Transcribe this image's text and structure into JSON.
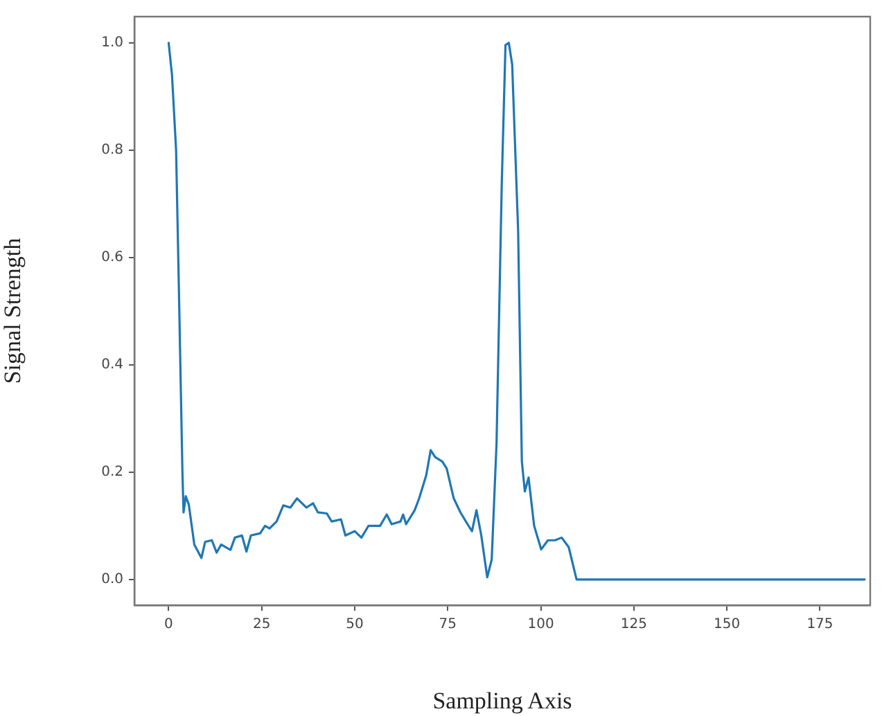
{
  "chart_data": {
    "type": "line",
    "xlabel": "Sampling Axis",
    "ylabel": "Signal Strength",
    "xlim": [
      -9.2,
      188.5
    ],
    "ylim": [
      -0.048,
      1.049
    ],
    "xticks": [
      0,
      25,
      50,
      75,
      100,
      125,
      150,
      175
    ],
    "yticks": [
      {
        "value": 0,
        "label": "0.0"
      },
      0.2,
      0.4,
      0.6,
      0.8,
      {
        "value": 1,
        "label": "1.0"
      }
    ],
    "grid": false,
    "legend": false,
    "marker": "none",
    "line_style": "solid",
    "series": [
      {
        "color": "#1f77b4",
        "x": [
          0,
          0.9,
          2,
          2.7,
          3.7,
          4,
          4.6,
          5.4,
          6.9,
          8.8,
          9.8,
          11.6,
          12.9,
          14.1,
          16.6,
          17.8,
          19.7,
          20.9,
          22.1,
          24.6,
          25.9,
          27.1,
          29,
          30.8,
          32.7,
          34.5,
          37,
          38.8,
          40.1,
          42.5,
          43.8,
          46.3,
          47.5,
          50,
          51.8,
          53.7,
          56.8,
          58.6,
          59.9,
          62.3,
          63,
          63.8,
          66.1,
          67.3,
          69.2,
          70.4,
          71.6,
          73.5,
          74.7,
          76.6,
          78.4,
          80.3,
          81.5,
          82.7,
          84,
          85.6,
          86.8,
          88.1,
          89.5,
          90.5,
          91.4,
          92.3,
          93.9,
          94.9,
          95.7,
          96.7,
          98.2,
          100.1,
          101.9,
          103.8,
          105.6,
          107.5,
          109.6,
          187
        ],
        "values": [
          1.0,
          0.94,
          0.8,
          0.56,
          0.2,
          0.125,
          0.155,
          0.14,
          0.065,
          0.04,
          0.07,
          0.073,
          0.05,
          0.065,
          0.055,
          0.078,
          0.082,
          0.052,
          0.082,
          0.086,
          0.1,
          0.095,
          0.108,
          0.138,
          0.134,
          0.151,
          0.134,
          0.142,
          0.125,
          0.123,
          0.108,
          0.112,
          0.082,
          0.09,
          0.078,
          0.1,
          0.1,
          0.121,
          0.103,
          0.108,
          0.121,
          0.103,
          0.129,
          0.151,
          0.194,
          0.241,
          0.228,
          0.22,
          0.207,
          0.151,
          0.125,
          0.103,
          0.09,
          0.129,
          0.082,
          0.004,
          0.037,
          0.254,
          0.737,
          0.996,
          1.0,
          0.96,
          0.65,
          0.22,
          0.164,
          0.19,
          0.1,
          0.056,
          0.073,
          0.073,
          0.078,
          0.06,
          0.0,
          0.0
        ]
      }
    ]
  }
}
